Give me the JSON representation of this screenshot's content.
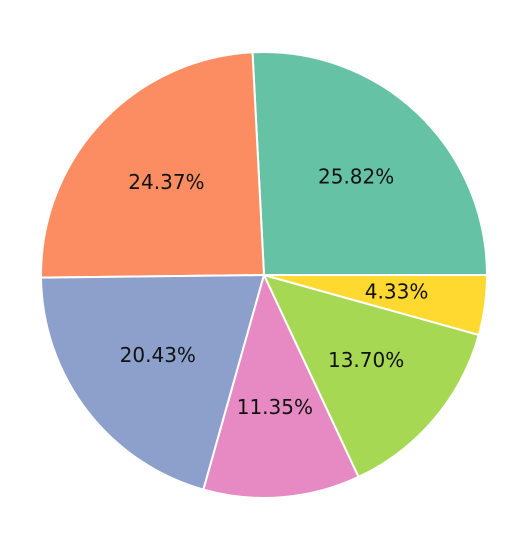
{
  "chart_data": {
    "type": "pie",
    "values": [
      25.82,
      24.37,
      20.43,
      11.35,
      13.7,
      4.33
    ],
    "value_labels": [
      "25.82%",
      "24.37%",
      "20.43%",
      "11.35%",
      "13.70%",
      "4.33%"
    ],
    "colors": [
      "#66c2a5",
      "#fc8d62",
      "#8da0cb",
      "#e78ac3",
      "#a6d854",
      "#ffd92f"
    ],
    "start_angle": 0,
    "counterclockwise": true
  }
}
